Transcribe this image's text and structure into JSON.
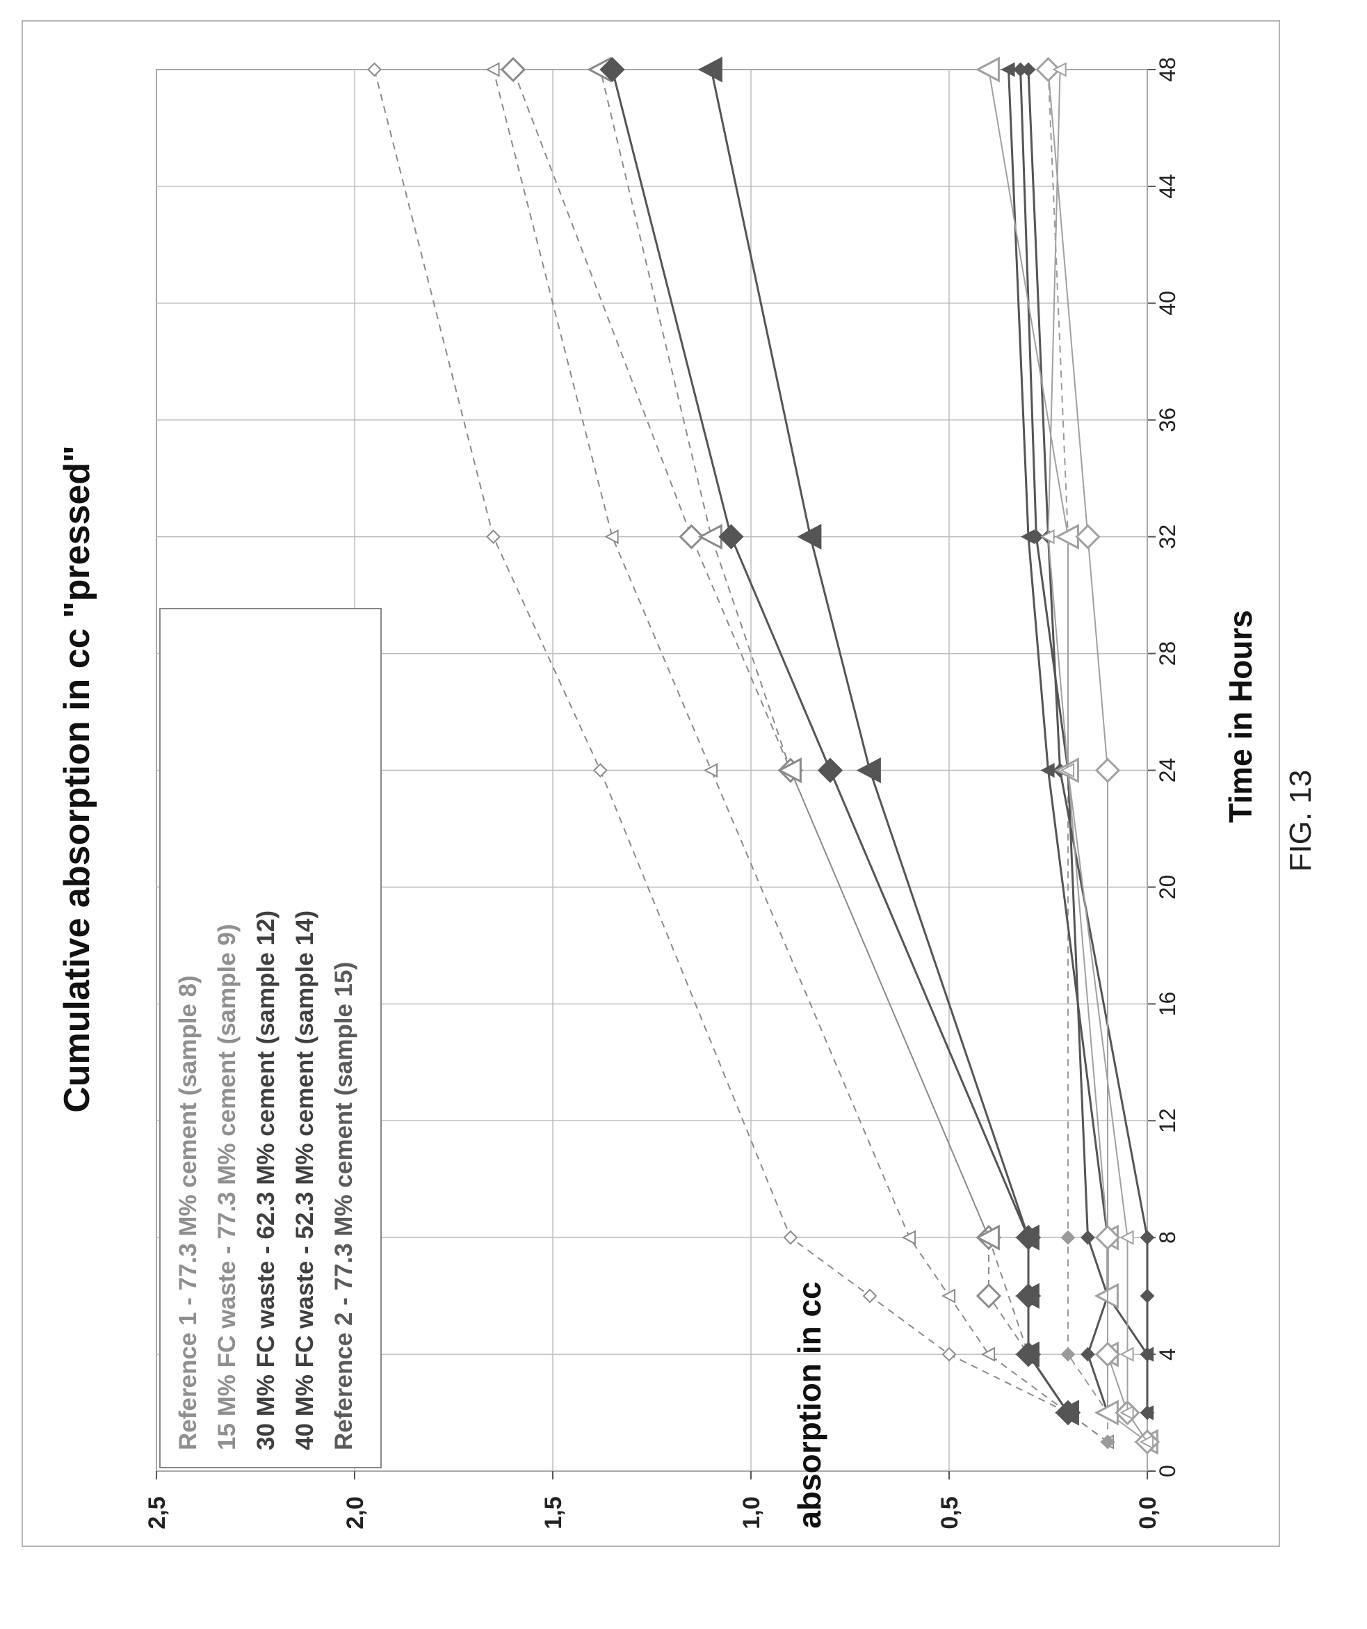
{
  "figure_label": "FIG. 13",
  "chart_data": {
    "type": "line",
    "title": "Cumulative absorption in cc \"pressed\"",
    "xlabel": "Time in Hours",
    "ylabel": "absorption in cc",
    "xlim": [
      0,
      48
    ],
    "ylim": [
      0,
      2.5
    ],
    "x_ticks": [
      "0",
      "4",
      "8",
      "12",
      "16",
      "20",
      "24",
      "28",
      "32",
      "36",
      "40",
      "44",
      "48"
    ],
    "y_ticks": [
      "0,0",
      "0,5",
      "1,0",
      "1,5",
      "2,0",
      "2,5"
    ],
    "grid": true,
    "orientation": "rotated 90 degrees counter-clockwise",
    "legend_position": "top-left",
    "legend": [
      "Reference 1 - 77.3 M% cement (sample 8)",
      "15 M% FC waste - 77.3 M% cement (sample 9)",
      "30 M% FC waste - 62.3 M% cement (sample 12)",
      "40 M% FC waste - 52.3 M% cement (sample 14)",
      "Reference 2 - 77.3 M% cement (sample 15)"
    ],
    "series": [
      {
        "group": "dashed",
        "marker": "diamond",
        "size": "small",
        "color": "#8a8a8a",
        "x": [
          1,
          2,
          4,
          6,
          8,
          24,
          32,
          48
        ],
        "y": [
          0.1,
          0.2,
          0.5,
          0.7,
          0.9,
          1.38,
          1.65,
          1.95
        ]
      },
      {
        "group": "dashed",
        "marker": "triangle",
        "size": "small",
        "color": "#8a8a8a",
        "x": [
          1,
          2,
          4,
          6,
          8,
          24,
          32,
          48
        ],
        "y": [
          0.1,
          0.2,
          0.4,
          0.5,
          0.6,
          1.1,
          1.35,
          1.65
        ]
      },
      {
        "group": "dashed",
        "marker": "diamond",
        "size": "large",
        "color": "#8a8a8a",
        "x": [
          2,
          4,
          6,
          8,
          24,
          32,
          48
        ],
        "y": [
          0.2,
          0.3,
          0.4,
          0.4,
          0.9,
          1.15,
          1.6
        ]
      },
      {
        "group": "dashed",
        "marker": "triangle",
        "size": "large",
        "color": "#8a8a8a",
        "x": [
          2,
          4,
          8,
          24,
          32,
          48
        ],
        "y": [
          0.2,
          0.3,
          0.4,
          0.9,
          1.1,
          1.38
        ]
      },
      {
        "group": "dashed-flat",
        "marker": "diamond-filled",
        "size": "small",
        "color": "#9a9a9a",
        "x": [
          1,
          2,
          4,
          8,
          24,
          32,
          48
        ],
        "y": [
          0.1,
          0.1,
          0.2,
          0.2,
          0.2,
          0.2,
          0.25
        ]
      },
      {
        "group": "solid",
        "marker": "diamond-filled",
        "size": "large",
        "color": "#555555",
        "x": [
          2,
          4,
          6,
          8,
          24,
          32,
          48
        ],
        "y": [
          0.2,
          0.3,
          0.3,
          0.3,
          0.8,
          1.05,
          1.35
        ]
      },
      {
        "group": "solid",
        "marker": "triangle-filled",
        "size": "large",
        "color": "#555555",
        "x": [
          2,
          4,
          6,
          8,
          24,
          32,
          48
        ],
        "y": [
          0.2,
          0.3,
          0.3,
          0.3,
          0.7,
          0.85,
          1.1
        ]
      },
      {
        "group": "low",
        "marker": "diamond-filled",
        "size": "small",
        "color": "#555555",
        "x": [
          2,
          4,
          6,
          8,
          24,
          32,
          48
        ],
        "y": [
          0,
          0,
          0,
          0,
          0.22,
          0.25,
          0.3
        ]
      },
      {
        "group": "low",
        "marker": "triangle-filled",
        "size": "small",
        "color": "#555555",
        "x": [
          2,
          4,
          6,
          8,
          24,
          32,
          48
        ],
        "y": [
          0,
          0,
          0.1,
          0.1,
          0.25,
          0.3,
          0.35
        ]
      },
      {
        "group": "low",
        "marker": "diamond-filled",
        "size": "small",
        "color": "#555555",
        "x": [
          2,
          4,
          6,
          8,
          24,
          32,
          48
        ],
        "y": [
          0.1,
          0.15,
          0.1,
          0.15,
          0.2,
          0.28,
          0.32
        ]
      },
      {
        "group": "low-light",
        "marker": "triangle",
        "size": "large",
        "color": "#a0a0a0",
        "x": [
          1,
          2,
          4,
          6,
          8,
          24,
          32,
          48
        ],
        "y": [
          0,
          0.1,
          0.1,
          0.1,
          0.1,
          0.2,
          0.2,
          0.4
        ]
      },
      {
        "group": "low-light",
        "marker": "diamond",
        "size": "large",
        "color": "#a0a0a0",
        "x": [
          1,
          2,
          4,
          8,
          24,
          32,
          48
        ],
        "y": [
          0,
          0.05,
          0.1,
          0.1,
          0.1,
          0.15,
          0.25
        ]
      },
      {
        "group": "low-light",
        "marker": "triangle",
        "size": "small",
        "color": "#a0a0a0",
        "x": [
          1,
          2,
          4,
          8,
          24,
          32,
          48
        ],
        "y": [
          0,
          0.05,
          0.05,
          0.05,
          0.2,
          0.25,
          0.22
        ]
      }
    ]
  }
}
